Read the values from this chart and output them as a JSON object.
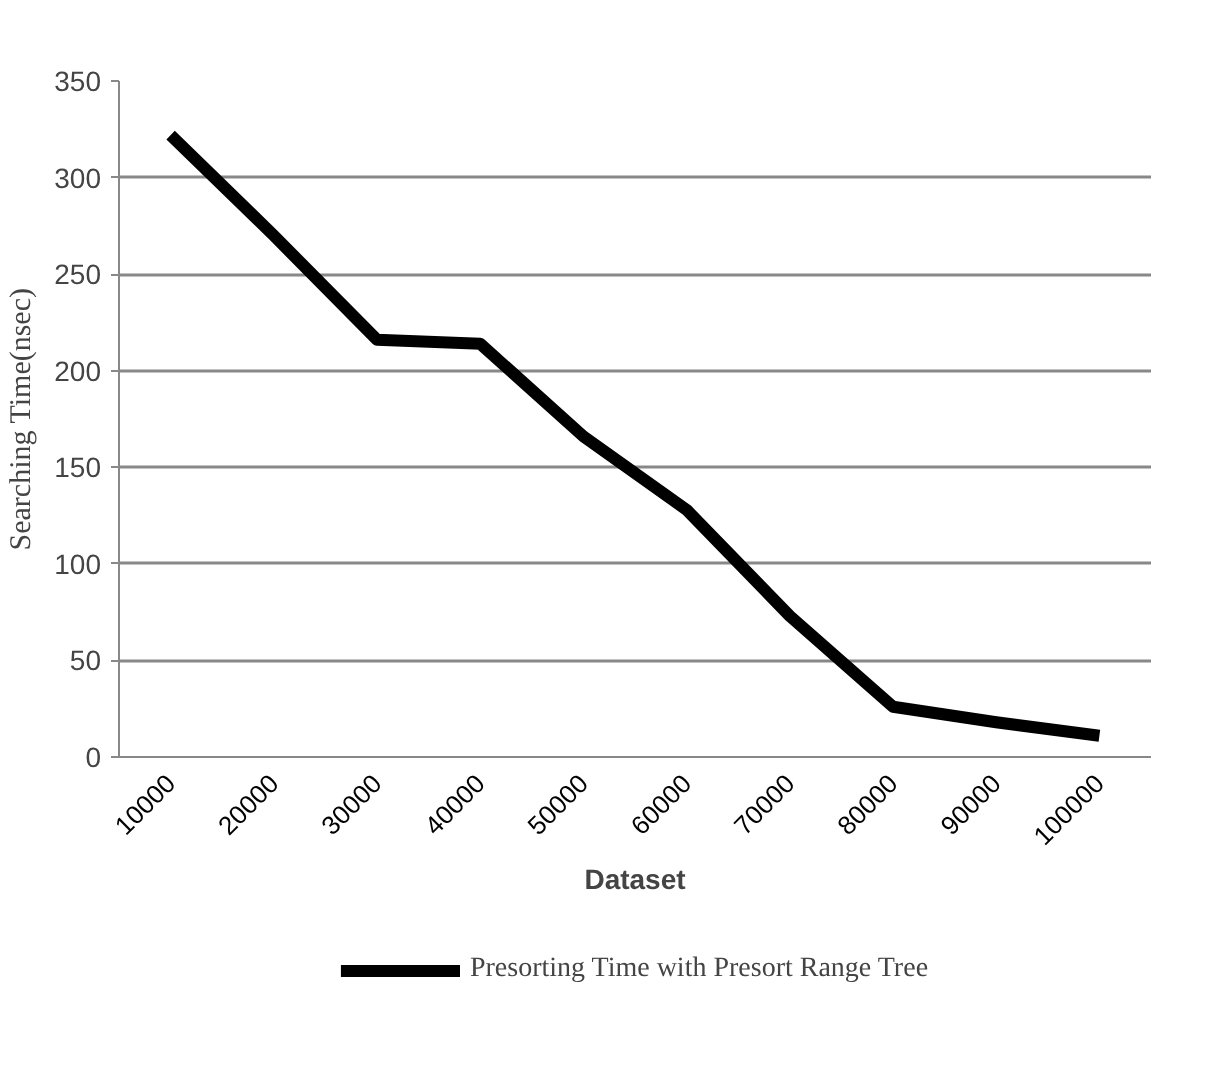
{
  "chart_data": {
    "type": "line",
    "xlabel": "Dataset",
    "ylabel": "Searching Time(nsec)",
    "categories": [
      "10000",
      "20000",
      "30000",
      "40000",
      "50000",
      "60000",
      "70000",
      "80000",
      "90000",
      "100000"
    ],
    "series": [
      {
        "name": "Presorting Time with Presort Range Tree",
        "color": "#000000",
        "values": [
          322,
          270,
          216,
          214,
          166,
          128,
          73,
          26,
          18,
          11
        ]
      }
    ],
    "ylim": [
      0,
      350
    ],
    "yticks": [
      0,
      50,
      100,
      150,
      200,
      250,
      300,
      350
    ],
    "grid": "y",
    "legend": "bottom",
    "marker": "none",
    "line_style": "solid"
  }
}
